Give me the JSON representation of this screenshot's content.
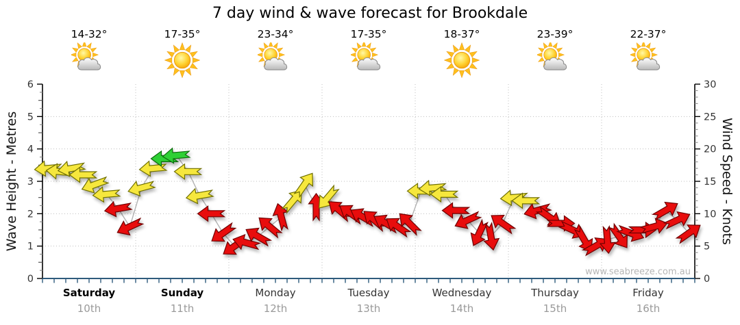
{
  "title": "7 day wind & wave forecast for Brookdale",
  "watermark": "www.seabreeze.com.au",
  "days": [
    {
      "name": "Saturday",
      "date": "10th",
      "temp": "14-32°",
      "icon": "sun-cloud",
      "weekend": true
    },
    {
      "name": "Sunday",
      "date": "11th",
      "temp": "17-35°",
      "icon": "sun",
      "weekend": true
    },
    {
      "name": "Monday",
      "date": "12th",
      "temp": "23-34°",
      "icon": "sun-cloud",
      "weekend": false
    },
    {
      "name": "Tuesday",
      "date": "13th",
      "temp": "17-35°",
      "icon": "sun-cloud",
      "weekend": false
    },
    {
      "name": "Wednesday",
      "date": "14th",
      "temp": "18-37°",
      "icon": "sun",
      "weekend": false
    },
    {
      "name": "Thursday",
      "date": "15th",
      "temp": "23-39°",
      "icon": "sun-cloud",
      "weekend": false
    },
    {
      "name": "Friday",
      "date": "16th",
      "temp": "22-37°",
      "icon": "sun-cloud",
      "weekend": false
    }
  ],
  "chart_data": {
    "type": "wind-arrow-timeseries",
    "title": "7 day wind & wave forecast for Brookdale",
    "y_left": {
      "label": "Wave Height - Metres",
      "min": 0,
      "max": 6,
      "major_step": 1
    },
    "y_right": {
      "label": "Wind Speed - Knots",
      "min": 0,
      "max": 30,
      "major_step": 5
    },
    "x": {
      "days": [
        "Saturday",
        "Sunday",
        "Monday",
        "Tuesday",
        "Wednesday",
        "Thursday",
        "Friday"
      ],
      "points_per_day": 8,
      "interval_hours": 3
    },
    "grid": {
      "horizontal": "dotted every 5 knots (1 metre)",
      "vertical": "dotted at day boundaries"
    },
    "speed_color_scale": {
      "red": "under ~11 knots",
      "yellow": "~11-18 knots",
      "green": "18+ knots"
    },
    "palette": {
      "red": "#e81010",
      "yellow": "#f6e73c",
      "green": "#2fd034",
      "red_outline": "#6e0000",
      "yellow_outline": "#6e6e00",
      "green_outline": "#0b6b0b",
      "axis_x": "#2e5a7c",
      "axis_y": "#000000",
      "grid": "#bdbdbd",
      "connector": "#b3b3b3",
      "tick_label": "#333333",
      "minor_tick": "#8a8a8a"
    },
    "dir_convention": "degrees counter-clockwise from screen-right; arrow points where wind blows toward",
    "arrows": [
      {
        "t": 0,
        "knots": 17,
        "dir": 185,
        "c": "y"
      },
      {
        "t": 1,
        "knots": 16.5,
        "dir": 175,
        "c": "y"
      },
      {
        "t": 2,
        "knots": 17,
        "dir": 190,
        "c": "y"
      },
      {
        "t": 3,
        "knots": 16,
        "dir": 180,
        "c": "y"
      },
      {
        "t": 4,
        "knots": 14.5,
        "dir": 200,
        "c": "y"
      },
      {
        "t": 5,
        "knots": 13,
        "dir": 185,
        "c": "y"
      },
      {
        "t": 6,
        "knots": 10.8,
        "dir": 190,
        "c": "r"
      },
      {
        "t": 7,
        "knots": 8,
        "dir": 205,
        "c": "r"
      },
      {
        "t": 8,
        "knots": 14,
        "dir": 195,
        "c": "y"
      },
      {
        "t": 9,
        "knots": 17,
        "dir": 185,
        "c": "y"
      },
      {
        "t": 10,
        "knots": 18.5,
        "dir": 180,
        "c": "g"
      },
      {
        "t": 11,
        "knots": 19,
        "dir": 185,
        "c": "g"
      },
      {
        "t": 12,
        "knots": 16.5,
        "dir": 180,
        "c": "y"
      },
      {
        "t": 13,
        "knots": 12.8,
        "dir": 190,
        "c": "y"
      },
      {
        "t": 14,
        "knots": 10,
        "dir": 180,
        "c": "r"
      },
      {
        "t": 15,
        "knots": 7,
        "dir": 215,
        "c": "r"
      },
      {
        "t": 16,
        "knots": 5,
        "dir": 215,
        "c": "r"
      },
      {
        "t": 17,
        "knots": 5.5,
        "dir": 165,
        "c": "r"
      },
      {
        "t": 18,
        "knots": 6.5,
        "dir": 150,
        "c": "r"
      },
      {
        "t": 19,
        "knots": 8,
        "dir": 140,
        "c": "r"
      },
      {
        "t": 20,
        "knots": 9.5,
        "dir": 105,
        "c": "r"
      },
      {
        "t": 21,
        "knots": 12,
        "dir": 50,
        "c": "y"
      },
      {
        "t": 22,
        "knots": 14.5,
        "dir": 55,
        "c": "y"
      },
      {
        "t": 23,
        "knots": 11,
        "dir": 90,
        "c": "r"
      },
      {
        "t": 24,
        "knots": 12.5,
        "dir": 230,
        "c": "y"
      },
      {
        "t": 25,
        "knots": 10.5,
        "dir": 140,
        "c": "r"
      },
      {
        "t": 26,
        "knots": 10,
        "dir": 145,
        "c": "r"
      },
      {
        "t": 27,
        "knots": 9.5,
        "dir": 150,
        "c": "r"
      },
      {
        "t": 28,
        "knots": 9,
        "dir": 140,
        "c": "r"
      },
      {
        "t": 29,
        "knots": 8.5,
        "dir": 150,
        "c": "r"
      },
      {
        "t": 30,
        "knots": 8,
        "dir": 145,
        "c": "r"
      },
      {
        "t": 31,
        "knots": 8.5,
        "dir": 135,
        "c": "r"
      },
      {
        "t": 32,
        "knots": 13.5,
        "dir": 180,
        "c": "y"
      },
      {
        "t": 33,
        "knots": 14,
        "dir": 185,
        "c": "y"
      },
      {
        "t": 34,
        "knots": 13,
        "dir": 180,
        "c": "y"
      },
      {
        "t": 35,
        "knots": 10.5,
        "dir": 180,
        "c": "r"
      },
      {
        "t": 36,
        "knots": 9,
        "dir": 205,
        "c": "r"
      },
      {
        "t": 37,
        "knots": 7,
        "dir": 245,
        "c": "r"
      },
      {
        "t": 38,
        "knots": 6.5,
        "dir": 280,
        "c": "r"
      },
      {
        "t": 39,
        "knots": 8.5,
        "dir": 145,
        "c": "r"
      },
      {
        "t": 40,
        "knots": 12.5,
        "dir": 185,
        "c": "y"
      },
      {
        "t": 41,
        "knots": 12,
        "dir": 180,
        "c": "y"
      },
      {
        "t": 42,
        "knots": 10.5,
        "dir": 195,
        "c": "r"
      },
      {
        "t": 43,
        "knots": 9.5,
        "dir": 325,
        "c": "r"
      },
      {
        "t": 44,
        "knots": 8.5,
        "dir": 0,
        "c": "r"
      },
      {
        "t": 45,
        "knots": 7.5,
        "dir": 335,
        "c": "r"
      },
      {
        "t": 46,
        "knots": 6,
        "dir": 300,
        "c": "r"
      },
      {
        "t": 47,
        "knots": 5,
        "dir": 30,
        "c": "r"
      },
      {
        "t": 48,
        "knots": 6,
        "dir": 275,
        "c": "r"
      },
      {
        "t": 49,
        "knots": 6.5,
        "dir": 305,
        "c": "r"
      },
      {
        "t": 50,
        "knots": 7,
        "dir": 340,
        "c": "r"
      },
      {
        "t": 51,
        "knots": 7.5,
        "dir": 0,
        "c": "r"
      },
      {
        "t": 52,
        "knots": 8,
        "dir": 15,
        "c": "r"
      },
      {
        "t": 53,
        "knots": 10.5,
        "dir": 30,
        "c": "r"
      },
      {
        "t": 54,
        "knots": 9,
        "dir": 25,
        "c": "r"
      },
      {
        "t": 55,
        "knots": 7,
        "dir": 35,
        "c": "r"
      }
    ]
  }
}
